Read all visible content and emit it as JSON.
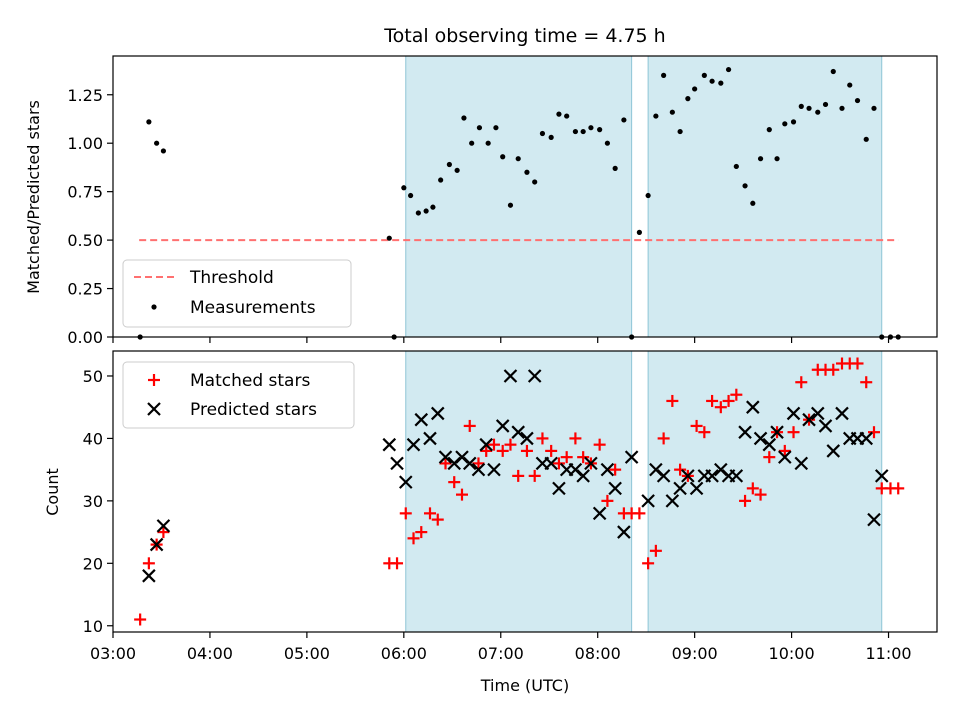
{
  "chart_data": [
    {
      "type": "scatter",
      "title": "Total observing time = 4.75 h",
      "ylabel": "Matched/Predicted stars",
      "xlabel": "",
      "x_unit": "hours UTC",
      "xlim": [
        3.0,
        11.5
      ],
      "ylim": [
        0.0,
        1.45
      ],
      "yticks": [
        "0.00",
        "0.25",
        "0.50",
        "0.75",
        "1.00",
        "1.25"
      ],
      "ytick_values": [
        0,
        0.25,
        0.5,
        0.75,
        1.0,
        1.25
      ],
      "shaded_intervals": [
        [
          6.02,
          8.35
        ],
        [
          8.52,
          10.93
        ]
      ],
      "threshold": {
        "name": "Threshold",
        "value": 0.5,
        "x_range": [
          3.27,
          11.1
        ],
        "color": "#ff7070"
      },
      "series": [
        {
          "name": "Measurements",
          "marker": "dot",
          "color": "#000000",
          "x": [
            3.28,
            3.37,
            3.45,
            3.52,
            5.85,
            5.9,
            6.0,
            6.07,
            6.15,
            6.23,
            6.3,
            6.38,
            6.47,
            6.55,
            6.62,
            6.7,
            6.78,
            6.87,
            6.95,
            7.02,
            7.1,
            7.18,
            7.27,
            7.35,
            7.43,
            7.52,
            7.6,
            7.68,
            7.77,
            7.85,
            7.93,
            8.02,
            8.1,
            8.18,
            8.27,
            8.35,
            8.43,
            8.52,
            8.6,
            8.68,
            8.77,
            8.85,
            8.93,
            9.0,
            9.1,
            9.18,
            9.27,
            9.35,
            9.43,
            9.52,
            9.6,
            9.68,
            9.77,
            9.85,
            9.93,
            10.02,
            10.1,
            10.18,
            10.27,
            10.35,
            10.43,
            10.52,
            10.6,
            10.68,
            10.77,
            10.85,
            10.93,
            11.02,
            11.1
          ],
          "y": [
            0.0,
            1.11,
            1.0,
            0.96,
            0.51,
            0.0,
            0.77,
            0.73,
            0.64,
            0.65,
            0.67,
            0.81,
            0.89,
            0.86,
            1.13,
            1.0,
            1.08,
            1.0,
            1.08,
            0.93,
            0.68,
            0.92,
            0.85,
            0.8,
            1.05,
            1.03,
            1.15,
            1.14,
            1.06,
            1.06,
            1.08,
            1.07,
            1.0,
            0.87,
            1.12,
            0.0,
            0.54,
            0.73,
            1.14,
            1.35,
            1.16,
            1.06,
            1.23,
            1.28,
            1.35,
            1.32,
            1.31,
            1.38,
            0.88,
            0.78,
            0.69,
            0.92,
            1.07,
            0.92,
            1.1,
            1.11,
            1.19,
            1.18,
            1.16,
            1.2,
            1.37,
            1.18,
            1.3,
            1.22,
            1.02,
            1.18,
            0.0,
            0.0,
            0.0
          ]
        }
      ],
      "legend": {
        "position": "lower-left",
        "entries": [
          "Threshold",
          "Measurements"
        ]
      }
    },
    {
      "type": "scatter",
      "title": "",
      "xlabel": "Time (UTC)",
      "ylabel": "Count",
      "x_unit": "hours UTC",
      "xlim": [
        3.0,
        11.5
      ],
      "ylim": [
        9.0,
        54.0
      ],
      "xticks": [
        "03:00",
        "04:00",
        "05:00",
        "06:00",
        "07:00",
        "08:00",
        "09:00",
        "10:00",
        "11:00"
      ],
      "xtick_values": [
        3,
        4,
        5,
        6,
        7,
        8,
        9,
        10,
        11
      ],
      "yticks": [
        "10",
        "20",
        "30",
        "40",
        "50"
      ],
      "ytick_values": [
        10,
        20,
        30,
        40,
        50
      ],
      "shaded_intervals": [
        [
          6.02,
          8.35
        ],
        [
          8.52,
          10.93
        ]
      ],
      "series": [
        {
          "name": "Matched stars",
          "marker": "plus",
          "color": "#ff0000",
          "x": [
            3.28,
            3.37,
            3.45,
            3.52,
            5.85,
            5.93,
            6.02,
            6.1,
            6.18,
            6.27,
            6.35,
            6.43,
            6.52,
            6.6,
            6.68,
            6.77,
            6.85,
            6.93,
            7.02,
            7.1,
            7.18,
            7.27,
            7.35,
            7.43,
            7.52,
            7.6,
            7.68,
            7.77,
            7.85,
            7.93,
            8.02,
            8.1,
            8.18,
            8.27,
            8.35,
            8.43,
            8.52,
            8.6,
            8.68,
            8.77,
            8.85,
            8.93,
            9.02,
            9.1,
            9.18,
            9.27,
            9.35,
            9.43,
            9.52,
            9.6,
            9.68,
            9.77,
            9.85,
            9.93,
            10.02,
            10.1,
            10.18,
            10.27,
            10.35,
            10.43,
            10.52,
            10.6,
            10.68,
            10.77,
            10.85,
            10.93,
            11.02,
            11.1
          ],
          "y": [
            11,
            20,
            23,
            25,
            20,
            20,
            28,
            24,
            25,
            28,
            27,
            36,
            33,
            31,
            42,
            36,
            38,
            39,
            38,
            39,
            34,
            38,
            34,
            40,
            38,
            36,
            37,
            40,
            37,
            36,
            39,
            30,
            35,
            28,
            28,
            28,
            20,
            22,
            40,
            46,
            35,
            34,
            42,
            41,
            46,
            45,
            46,
            47,
            30,
            32,
            31,
            37,
            41,
            38,
            41,
            49,
            43,
            51,
            51,
            51,
            52,
            52,
            52,
            49,
            41,
            32,
            32,
            32
          ]
        },
        {
          "name": "Predicted stars",
          "marker": "x",
          "color": "#000000",
          "x": [
            3.37,
            3.45,
            3.52,
            5.85,
            5.93,
            6.02,
            6.1,
            6.18,
            6.27,
            6.35,
            6.43,
            6.52,
            6.6,
            6.68,
            6.77,
            6.85,
            6.93,
            7.02,
            7.1,
            7.18,
            7.27,
            7.35,
            7.43,
            7.52,
            7.6,
            7.68,
            7.77,
            7.85,
            7.93,
            8.02,
            8.1,
            8.18,
            8.27,
            8.35,
            8.52,
            8.6,
            8.68,
            8.77,
            8.85,
            8.93,
            9.02,
            9.1,
            9.18,
            9.27,
            9.35,
            9.43,
            9.52,
            9.6,
            9.68,
            9.77,
            9.85,
            9.93,
            10.02,
            10.1,
            10.18,
            10.27,
            10.35,
            10.43,
            10.52,
            10.6,
            10.68,
            10.77,
            10.85,
            10.93
          ],
          "y": [
            18,
            23,
            26,
            39,
            36,
            33,
            39,
            43,
            40,
            44,
            37,
            36,
            37,
            36,
            35,
            39,
            35,
            42,
            50,
            41,
            40,
            50,
            36,
            36,
            32,
            35,
            35,
            34,
            36,
            28,
            35,
            32,
            25,
            37,
            30,
            35,
            34,
            30,
            32,
            34,
            32,
            34,
            34,
            35,
            34,
            34,
            41,
            45,
            40,
            39,
            41,
            37,
            44,
            36,
            43,
            44,
            42,
            38,
            44,
            40,
            40,
            40,
            27,
            34
          ]
        }
      ],
      "legend": {
        "position": "top-left",
        "entries": [
          "Matched stars",
          "Predicted stars"
        ]
      }
    }
  ],
  "colors": {
    "shade": "#add8e6",
    "threshold": "#ff7070",
    "matched": "#ff0000",
    "predicted": "#000000"
  }
}
